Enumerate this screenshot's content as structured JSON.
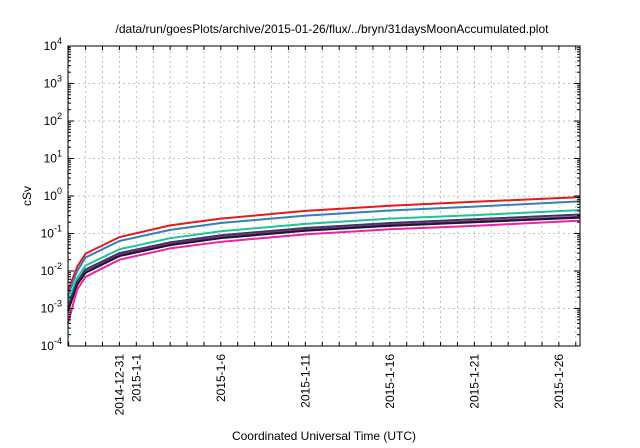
{
  "chart_data": {
    "type": "line",
    "title": "/data/run/goesPlots/archive/2015-01-26/flux/../bryn/31daysMoonAccumulated.plot",
    "xlabel": "Coordinated Universal Time (UTC)",
    "ylabel": "cSv",
    "yscale": "log",
    "xrange": [
      "2014-12-27T23:00",
      "2015-01-27T06:00"
    ],
    "ylim": [
      0.0001,
      10000
    ],
    "grid": true,
    "legend": "none",
    "x_ticks": [
      "2014-12-31",
      "2015-1-1",
      "2015-1-6",
      "2015-1-11",
      "2015-1-16",
      "2015-1-21",
      "2015-1-26"
    ],
    "x_tick_dates": [
      "2014-12-31",
      "2015-01-01",
      "2015-01-06",
      "2015-01-11",
      "2015-01-16",
      "2015-01-21",
      "2015-01-26"
    ],
    "y_ticks": [
      {
        "base": "10",
        "exp": "-4",
        "value": 0.0001
      },
      {
        "base": "10",
        "exp": "-3",
        "value": 0.001
      },
      {
        "base": "10",
        "exp": "-2",
        "value": 0.01
      },
      {
        "base": "10",
        "exp": "-1",
        "value": 0.1
      },
      {
        "base": "10",
        "exp": "0",
        "value": 1
      },
      {
        "base": "10",
        "exp": "1",
        "value": 10
      },
      {
        "base": "10",
        "exp": "2",
        "value": 100
      },
      {
        "base": "10",
        "exp": "3",
        "value": 1000
      },
      {
        "base": "10",
        "exp": "4",
        "value": 10000
      }
    ],
    "x": [
      "2014-12-27T23:00",
      "2014-12-28T12:00",
      "2014-12-29",
      "2014-12-31",
      "2015-01-03",
      "2015-01-06",
      "2015-01-11",
      "2015-01-16",
      "2015-01-21",
      "2015-01-27T06:00"
    ],
    "series": [
      {
        "color": "#e41a1c",
        "values": [
          0.003,
          0.013,
          0.029,
          0.08,
          0.165,
          0.25,
          0.4,
          0.55,
          0.7,
          0.93
        ]
      },
      {
        "color": "#377eb8",
        "values": [
          0.0022,
          0.01,
          0.023,
          0.063,
          0.125,
          0.19,
          0.3,
          0.41,
          0.52,
          0.72
        ]
      },
      {
        "color": "#1fc39a",
        "values": [
          0.0015,
          0.0065,
          0.014,
          0.038,
          0.075,
          0.115,
          0.18,
          0.25,
          0.31,
          0.42
        ]
      },
      {
        "color": "#3a3a5a",
        "values": [
          0.0011,
          0.0052,
          0.011,
          0.03,
          0.058,
          0.09,
          0.14,
          0.19,
          0.24,
          0.32
        ]
      },
      {
        "color": "#8a1ab8",
        "values": [
          0.0009,
          0.0046,
          0.0095,
          0.027,
          0.052,
          0.08,
          0.125,
          0.17,
          0.21,
          0.28
        ]
      },
      {
        "color": "#1a1a1a",
        "values": [
          0.00085,
          0.0043,
          0.009,
          0.025,
          0.049,
          0.075,
          0.118,
          0.16,
          0.2,
          0.265
        ]
      },
      {
        "color": "#f020a8",
        "values": [
          0.0004,
          0.0032,
          0.007,
          0.02,
          0.04,
          0.06,
          0.095,
          0.13,
          0.16,
          0.22
        ]
      }
    ]
  }
}
